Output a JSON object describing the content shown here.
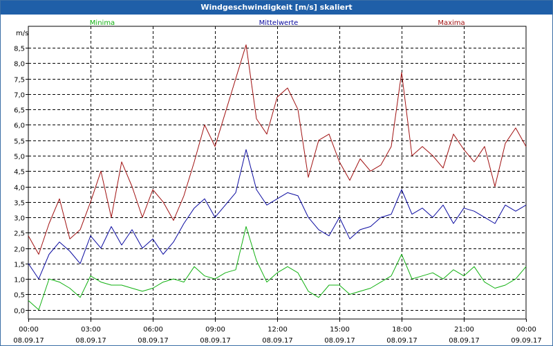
{
  "window": {
    "title": "Windgeschwindigkeit [m/s] skaliert"
  },
  "colors": {
    "minima": "#10b010",
    "mittel": "#0a0aa0",
    "maxima": "#a01010",
    "grid": "#000000"
  },
  "chart_data": {
    "type": "line",
    "title": "Windgeschwindigkeit [m/s] skaliert",
    "ylabel": "m/s",
    "ylim": [
      -0.3,
      9.2
    ],
    "yticks": [
      0.0,
      0.5,
      1.0,
      1.5,
      2.0,
      2.5,
      3.0,
      3.5,
      4.0,
      4.5,
      5.0,
      5.5,
      6.0,
      6.5,
      7.0,
      7.5,
      8.0,
      8.5
    ],
    "ytick_labels": [
      "0,0",
      "0,5",
      "1,0",
      "1,5",
      "2,0",
      "2,5",
      "3,0",
      "3,5",
      "4,0",
      "4,5",
      "5,0",
      "5,5",
      "6,0",
      "6,5",
      "7,0",
      "7,5",
      "8,0",
      "8,5"
    ],
    "xlim": [
      0,
      24
    ],
    "xticks": [
      {
        "h": 0,
        "time": "00:00",
        "date": "08.09.17"
      },
      {
        "h": 3,
        "time": "03:00",
        "date": "08.09.17"
      },
      {
        "h": 6,
        "time": "06:00",
        "date": "08.09.17"
      },
      {
        "h": 9,
        "time": "09:00",
        "date": "08.09.17"
      },
      {
        "h": 12,
        "time": "12:00",
        "date": "08.09.17"
      },
      {
        "h": 15,
        "time": "15:00",
        "date": "08.09.17"
      },
      {
        "h": 18,
        "time": "18:00",
        "date": "08.09.17"
      },
      {
        "h": 21,
        "time": "21:00",
        "date": "08.09.17"
      },
      {
        "h": 24,
        "time": "00:00",
        "date": "09.09.17"
      }
    ],
    "legend": [
      "Minima",
      "Mittelwerte",
      "Maxima"
    ],
    "x": [
      0,
      0.5,
      1,
      1.5,
      2,
      2.5,
      3,
      3.5,
      4,
      4.5,
      5,
      5.5,
      6,
      6.5,
      7,
      7.5,
      8,
      8.5,
      9,
      9.5,
      10,
      10.5,
      11,
      11.5,
      12,
      12.5,
      13,
      13.5,
      14,
      14.5,
      15,
      15.5,
      16,
      16.5,
      17,
      17.5,
      18,
      18.5,
      19,
      19.5,
      20,
      20.5,
      21,
      21.5,
      22,
      22.5,
      23,
      23.5,
      24
    ],
    "series": [
      {
        "name": "Maxima",
        "values": [
          2.4,
          1.8,
          2.8,
          3.6,
          2.3,
          2.6,
          3.5,
          4.5,
          3.0,
          4.8,
          4.0,
          3.0,
          3.9,
          3.5,
          2.9,
          3.7,
          4.8,
          6.0,
          5.3,
          6.4,
          7.5,
          8.6,
          6.2,
          5.7,
          6.9,
          7.2,
          6.5,
          4.3,
          5.5,
          5.7,
          4.8,
          4.2,
          4.9,
          4.5,
          4.7,
          5.3,
          7.7,
          5.0,
          5.3,
          5.0,
          4.6,
          5.7,
          5.2,
          4.8,
          5.3,
          4.0,
          5.4,
          5.9,
          5.3
        ]
      },
      {
        "name": "Mittelwerte",
        "values": [
          1.5,
          1.0,
          1.8,
          2.2,
          1.9,
          1.5,
          2.4,
          2.0,
          2.7,
          2.1,
          2.6,
          2.0,
          2.3,
          1.8,
          2.2,
          2.8,
          3.3,
          3.6,
          3.0,
          3.4,
          3.8,
          5.2,
          3.9,
          3.4,
          3.6,
          3.8,
          3.7,
          3.0,
          2.6,
          2.4,
          3.0,
          2.3,
          2.6,
          2.7,
          3.0,
          3.1,
          3.9,
          3.1,
          3.3,
          3.0,
          3.4,
          2.8,
          3.3,
          3.2,
          3.0,
          2.8,
          3.4,
          3.2,
          3.4
        ]
      },
      {
        "name": "Minima",
        "values": [
          0.3,
          0.0,
          1.0,
          0.9,
          0.7,
          0.4,
          1.1,
          0.9,
          0.8,
          0.8,
          0.7,
          0.6,
          0.7,
          0.9,
          1.0,
          0.9,
          1.4,
          1.1,
          1.0,
          1.2,
          1.3,
          2.7,
          1.6,
          0.9,
          1.2,
          1.4,
          1.2,
          0.6,
          0.4,
          0.8,
          0.8,
          0.5,
          0.6,
          0.7,
          0.9,
          1.1,
          1.8,
          1.0,
          1.1,
          1.2,
          1.0,
          1.3,
          1.1,
          1.4,
          0.9,
          0.7,
          0.8,
          1.0,
          1.4
        ]
      }
    ]
  }
}
